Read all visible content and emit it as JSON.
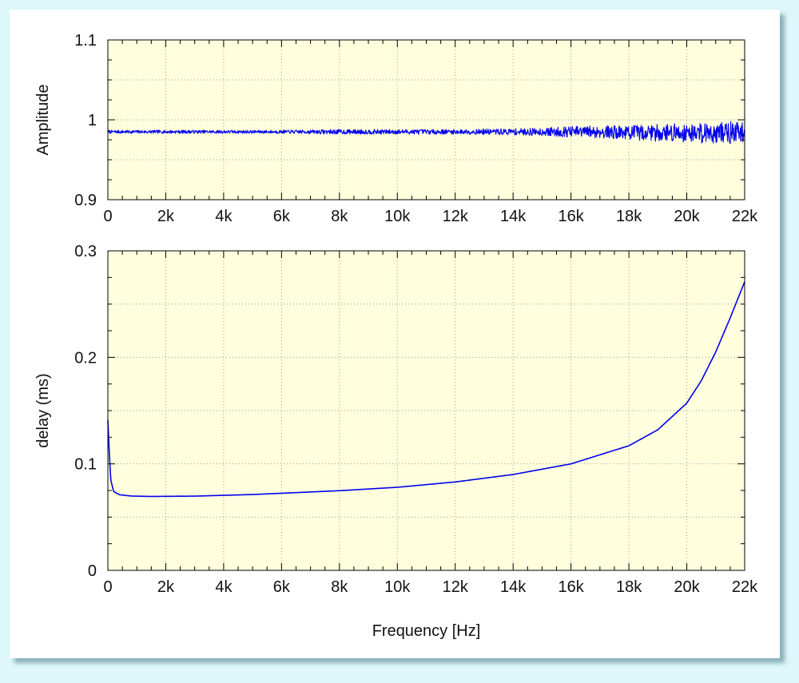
{
  "chart_data": [
    {
      "type": "line",
      "title": "",
      "xlabel": "",
      "ylabel": "Amplitude",
      "xlim": [
        0,
        22000
      ],
      "ylim": [
        0.9,
        1.1
      ],
      "x_ticks": [
        0,
        2000,
        4000,
        6000,
        8000,
        10000,
        12000,
        14000,
        16000,
        18000,
        20000,
        22000
      ],
      "x_tick_labels": [
        "0",
        "2k",
        "4k",
        "6k",
        "8k",
        "10k",
        "12k",
        "14k",
        "16k",
        "18k",
        "20k",
        "22k"
      ],
      "y_ticks": [
        0.9,
        1.0,
        1.1
      ],
      "y_tick_labels": [
        "0.9",
        "1",
        "1.1"
      ],
      "grid": true,
      "series_color": "#0000ee",
      "background_color": "#ffffdd",
      "series": [
        {
          "x": [
            0,
            2000,
            4000,
            6000,
            8000,
            10000,
            12000,
            14000,
            15000,
            16000,
            17000,
            18000,
            19000,
            20000,
            21000,
            22000
          ],
          "values": [
            0.985,
            0.985,
            0.985,
            0.985,
            0.985,
            0.985,
            0.985,
            0.985,
            0.985,
            0.985,
            0.985,
            0.984,
            0.984,
            0.984,
            0.984,
            0.984
          ],
          "noise_amplitude": [
            0.002,
            0.002,
            0.002,
            0.002,
            0.003,
            0.003,
            0.003,
            0.004,
            0.005,
            0.007,
            0.008,
            0.009,
            0.011,
            0.012,
            0.014,
            0.014
          ]
        }
      ]
    },
    {
      "type": "line",
      "title": "",
      "xlabel": "Frequency [Hz]",
      "ylabel": "delay (ms)",
      "xlim": [
        0,
        22000
      ],
      "ylim": [
        0,
        0.3
      ],
      "x_ticks": [
        0,
        2000,
        4000,
        6000,
        8000,
        10000,
        12000,
        14000,
        16000,
        18000,
        20000,
        22000
      ],
      "x_tick_labels": [
        "0",
        "2k",
        "4k",
        "6k",
        "8k",
        "10k",
        "12k",
        "14k",
        "16k",
        "18k",
        "20k",
        "22k"
      ],
      "y_ticks": [
        0,
        0.1,
        0.2,
        0.3
      ],
      "y_tick_labels": [
        "0",
        "0.1",
        "0.2",
        "0.3"
      ],
      "grid": true,
      "series_color": "#0000ee",
      "background_color": "#ffffdd",
      "series": [
        {
          "x": [
            0,
            50,
            100,
            200,
            400,
            800,
            1500,
            3000,
            5000,
            8000,
            10000,
            12000,
            14000,
            16000,
            18000,
            19000,
            20000,
            20500,
            21000,
            21500,
            22000
          ],
          "values": [
            0.141,
            0.11,
            0.085,
            0.074,
            0.071,
            0.0698,
            0.0694,
            0.0697,
            0.0712,
            0.0748,
            0.078,
            0.083,
            0.09,
            0.1,
            0.117,
            0.132,
            0.157,
            0.178,
            0.205,
            0.237,
            0.271
          ]
        }
      ]
    }
  ]
}
